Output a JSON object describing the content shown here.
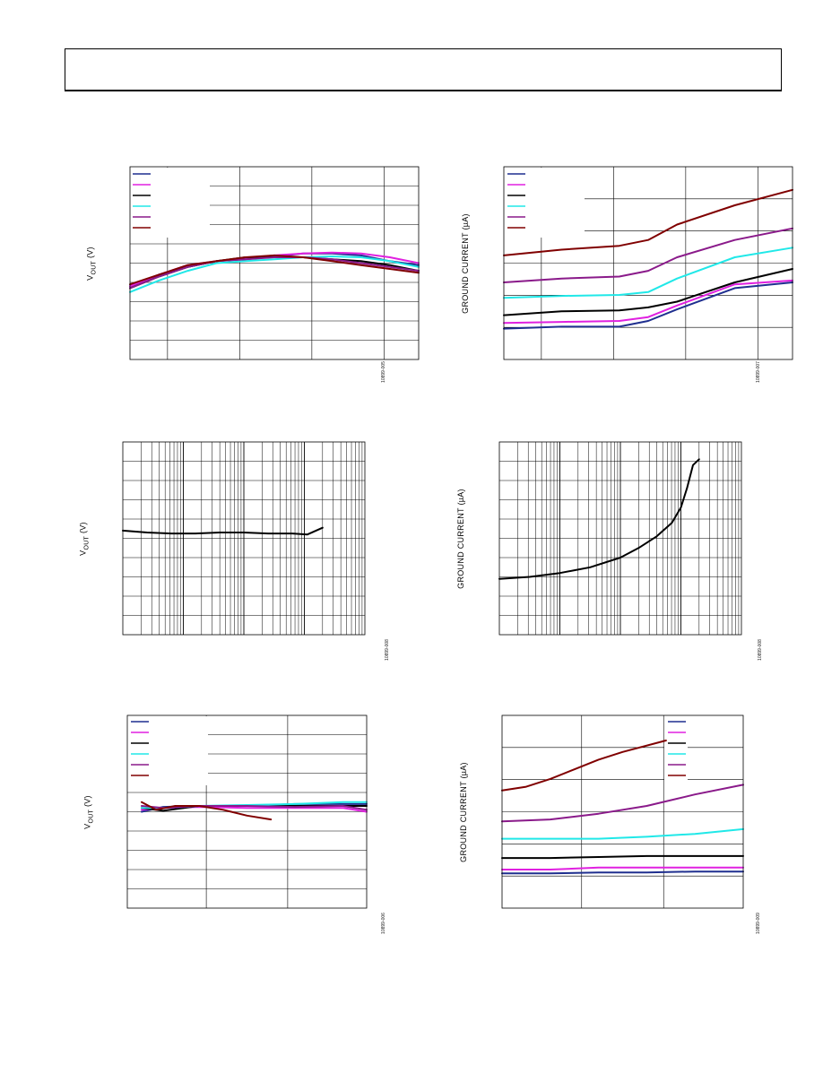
{
  "charts": [
    {
      "id": "c1",
      "ylabel_main": "V",
      "ylabel_sub": "OUT",
      "ylabel_tail": " (V)",
      "fig_id": "10899-005",
      "scale": "linear",
      "xlim": [
        0,
        10
      ],
      "ylim": [
        0,
        10
      ],
      "legend_colors": [
        "#1f2f8f",
        "#e020e0",
        "#000000",
        "#20e8e8",
        "#8a1a8a",
        "#800000"
      ],
      "series": [
        {
          "color": "#1f2f8f",
          "x": [
            0,
            1,
            2,
            3,
            4,
            5,
            6,
            7,
            8,
            9,
            10
          ],
          "y": [
            3.8,
            4.4,
            4.8,
            5.1,
            5.2,
            5.35,
            5.5,
            5.5,
            5.4,
            5.1,
            4.9
          ]
        },
        {
          "color": "#e020e0",
          "x": [
            0,
            1,
            2,
            3,
            4,
            5,
            6,
            7,
            8,
            9,
            10
          ],
          "y": [
            3.8,
            4.4,
            4.9,
            5.1,
            5.25,
            5.4,
            5.5,
            5.55,
            5.5,
            5.3,
            5.0
          ]
        },
        {
          "color": "#000000",
          "x": [
            0,
            1,
            2,
            3,
            4,
            5,
            6,
            7,
            8,
            9,
            10
          ],
          "y": [
            3.7,
            4.3,
            4.8,
            5.1,
            5.3,
            5.3,
            5.3,
            5.2,
            5.1,
            4.9,
            4.6
          ]
        },
        {
          "color": "#20e8e8",
          "x": [
            0,
            1,
            2,
            3,
            4,
            5,
            6,
            7,
            8,
            9,
            10
          ],
          "y": [
            3.5,
            4.1,
            4.6,
            5.0,
            5.1,
            5.2,
            5.3,
            5.35,
            5.3,
            5.1,
            4.8
          ]
        },
        {
          "color": "#8a1a8a",
          "x": [
            0,
            1,
            2,
            3,
            4,
            5,
            6,
            7,
            8,
            9,
            10
          ],
          "y": [
            3.7,
            4.3,
            4.8,
            5.1,
            5.2,
            5.3,
            5.3,
            5.2,
            5.0,
            4.8,
            4.6
          ]
        },
        {
          "color": "#800000",
          "x": [
            0,
            1,
            2,
            3,
            4,
            5,
            6,
            7,
            8,
            9,
            10
          ],
          "y": [
            3.9,
            4.4,
            4.9,
            5.1,
            5.3,
            5.4,
            5.3,
            5.1,
            4.9,
            4.7,
            4.5
          ]
        }
      ]
    },
    {
      "id": "c2",
      "ylabel_main": "GROUND CURRENT (µA)",
      "ylabel_sub": "",
      "ylabel_tail": "",
      "fig_id": "10899-007",
      "scale": "linear",
      "xlim": [
        0,
        10
      ],
      "ylim": [
        0,
        10
      ],
      "legend_colors": [
        "#1f2f8f",
        "#e020e0",
        "#000000",
        "#20e8e8",
        "#8a1a8a",
        "#800000"
      ],
      "series": [
        {
          "color": "#1f2f8f",
          "x": [
            0,
            2,
            4,
            5,
            6,
            8,
            10
          ],
          "y": [
            1.6,
            1.7,
            1.7,
            2.0,
            2.6,
            3.7,
            4.0
          ]
        },
        {
          "color": "#e020e0",
          "x": [
            0,
            2,
            4,
            5,
            6,
            8,
            10
          ],
          "y": [
            1.9,
            1.95,
            2.0,
            2.2,
            2.8,
            3.9,
            4.1
          ]
        },
        {
          "color": "#000000",
          "x": [
            0,
            2,
            4,
            5,
            6,
            8,
            10
          ],
          "y": [
            2.3,
            2.5,
            2.55,
            2.7,
            3.0,
            4.0,
            4.7
          ]
        },
        {
          "color": "#20e8e8",
          "x": [
            0,
            2,
            4,
            5,
            6,
            8,
            10
          ],
          "y": [
            3.2,
            3.3,
            3.35,
            3.5,
            4.2,
            5.3,
            5.8
          ]
        },
        {
          "color": "#8a1a8a",
          "x": [
            0,
            2,
            4,
            5,
            6,
            8,
            10
          ],
          "y": [
            4.0,
            4.2,
            4.3,
            4.6,
            5.3,
            6.2,
            6.8
          ]
        },
        {
          "color": "#800000",
          "x": [
            0,
            2,
            4,
            5,
            6,
            8,
            10
          ],
          "y": [
            5.4,
            5.7,
            5.9,
            6.2,
            7.0,
            8.0,
            8.8
          ]
        }
      ]
    },
    {
      "id": "c3",
      "ylabel_main": "V",
      "ylabel_sub": "OUT",
      "ylabel_tail": " (V)",
      "fig_id": "10899-008",
      "scale": "log",
      "decades": 4,
      "xlim": [
        0,
        4
      ],
      "ylim": [
        0,
        10
      ],
      "legend_colors": [],
      "series": [
        {
          "color": "#000000",
          "x": [
            0,
            0.4,
            0.8,
            1.2,
            1.6,
            2.0,
            2.4,
            2.8,
            3.05,
            3.3
          ],
          "y": [
            5.4,
            5.3,
            5.25,
            5.25,
            5.3,
            5.3,
            5.25,
            5.25,
            5.2,
            5.55
          ]
        }
      ]
    },
    {
      "id": "c4",
      "ylabel_main": "GROUND CURRENT (µA)",
      "ylabel_sub": "",
      "ylabel_tail": "",
      "fig_id": "10899-008",
      "scale": "log",
      "decades": 4,
      "xlim": [
        0,
        4
      ],
      "ylim": [
        0,
        10
      ],
      "legend_colors": [],
      "series": [
        {
          "color": "#000000",
          "x": [
            0,
            0.5,
            1.0,
            1.5,
            2.0,
            2.3,
            2.6,
            2.85,
            3.0,
            3.1,
            3.2,
            3.3
          ],
          "y": [
            2.9,
            3.0,
            3.2,
            3.5,
            4.0,
            4.5,
            5.1,
            5.8,
            6.6,
            7.6,
            8.8,
            9.1
          ]
        }
      ]
    },
    {
      "id": "c5",
      "ylabel_main": "V",
      "ylabel_sub": "OUT",
      "ylabel_tail": " (V)",
      "fig_id": "10899-006",
      "scale": "linear",
      "xlim": [
        0,
        10
      ],
      "ylim": [
        0,
        10
      ],
      "legend_colors": [
        "#1f2f8f",
        "#e020e0",
        "#000000",
        "#20e8e8",
        "#8a1a8a",
        "#800000"
      ],
      "series": [
        {
          "color": "#1f2f8f",
          "x": [
            0.6,
            1.5,
            3,
            5,
            7,
            9,
            10
          ],
          "y": [
            5.0,
            5.25,
            5.3,
            5.3,
            5.4,
            5.4,
            5.4
          ]
        },
        {
          "color": "#e020e0",
          "x": [
            0.6,
            1.5,
            3,
            5,
            7,
            9,
            10
          ],
          "y": [
            5.1,
            5.2,
            5.25,
            5.2,
            5.2,
            5.2,
            5.0
          ]
        },
        {
          "color": "#000000",
          "x": [
            0.6,
            1.5,
            3,
            5,
            7,
            9,
            10
          ],
          "y": [
            5.2,
            5.05,
            5.3,
            5.3,
            5.3,
            5.3,
            5.3
          ]
        },
        {
          "color": "#20e8e8",
          "x": [
            0.6,
            1.5,
            3,
            5,
            7,
            9,
            10
          ],
          "y": [
            5.2,
            5.2,
            5.3,
            5.35,
            5.4,
            5.5,
            5.5
          ]
        },
        {
          "color": "#8a1a8a",
          "x": [
            0.6,
            1.5,
            3,
            5,
            7,
            9,
            10
          ],
          "y": [
            5.3,
            5.2,
            5.3,
            5.3,
            5.25,
            5.3,
            5.1
          ]
        },
        {
          "color": "#800000",
          "x": [
            0.6,
            1.2,
            2,
            3,
            4,
            5,
            6
          ],
          "y": [
            5.5,
            5.1,
            5.3,
            5.3,
            5.1,
            4.8,
            4.6
          ]
        }
      ]
    },
    {
      "id": "c6",
      "ylabel_main": "GROUND CURRENT (µA)",
      "ylabel_sub": "",
      "ylabel_tail": "",
      "fig_id": "10899-009",
      "scale": "linear",
      "xlim": [
        0,
        10
      ],
      "ylim": [
        0,
        10
      ],
      "legend_colors": [
        "#1f2f8f",
        "#e020e0",
        "#000000",
        "#20e8e8",
        "#8a1a8a",
        "#800000"
      ],
      "legend_pos": "top-right",
      "series": [
        {
          "color": "#1f2f8f",
          "x": [
            0,
            2,
            4,
            6,
            8,
            10
          ],
          "y": [
            1.8,
            1.8,
            1.85,
            1.85,
            1.9,
            1.9
          ]
        },
        {
          "color": "#e020e0",
          "x": [
            0,
            2,
            4,
            6,
            8,
            10
          ],
          "y": [
            2.0,
            2.0,
            2.1,
            2.1,
            2.1,
            2.1
          ]
        },
        {
          "color": "#000000",
          "x": [
            0,
            2,
            4,
            6,
            8,
            10
          ],
          "y": [
            2.6,
            2.6,
            2.65,
            2.7,
            2.7,
            2.7
          ]
        },
        {
          "color": "#20e8e8",
          "x": [
            0,
            2,
            4,
            6,
            8,
            10
          ],
          "y": [
            3.6,
            3.6,
            3.6,
            3.7,
            3.85,
            4.1
          ]
        },
        {
          "color": "#8a1a8a",
          "x": [
            0,
            2,
            4,
            6,
            8,
            10
          ],
          "y": [
            4.5,
            4.6,
            4.9,
            5.3,
            5.9,
            6.4
          ]
        },
        {
          "color": "#800000",
          "x": [
            0,
            1,
            2,
            3,
            4,
            5,
            6.8
          ],
          "y": [
            6.1,
            6.3,
            6.7,
            7.2,
            7.7,
            8.1,
            8.7
          ]
        }
      ]
    }
  ]
}
